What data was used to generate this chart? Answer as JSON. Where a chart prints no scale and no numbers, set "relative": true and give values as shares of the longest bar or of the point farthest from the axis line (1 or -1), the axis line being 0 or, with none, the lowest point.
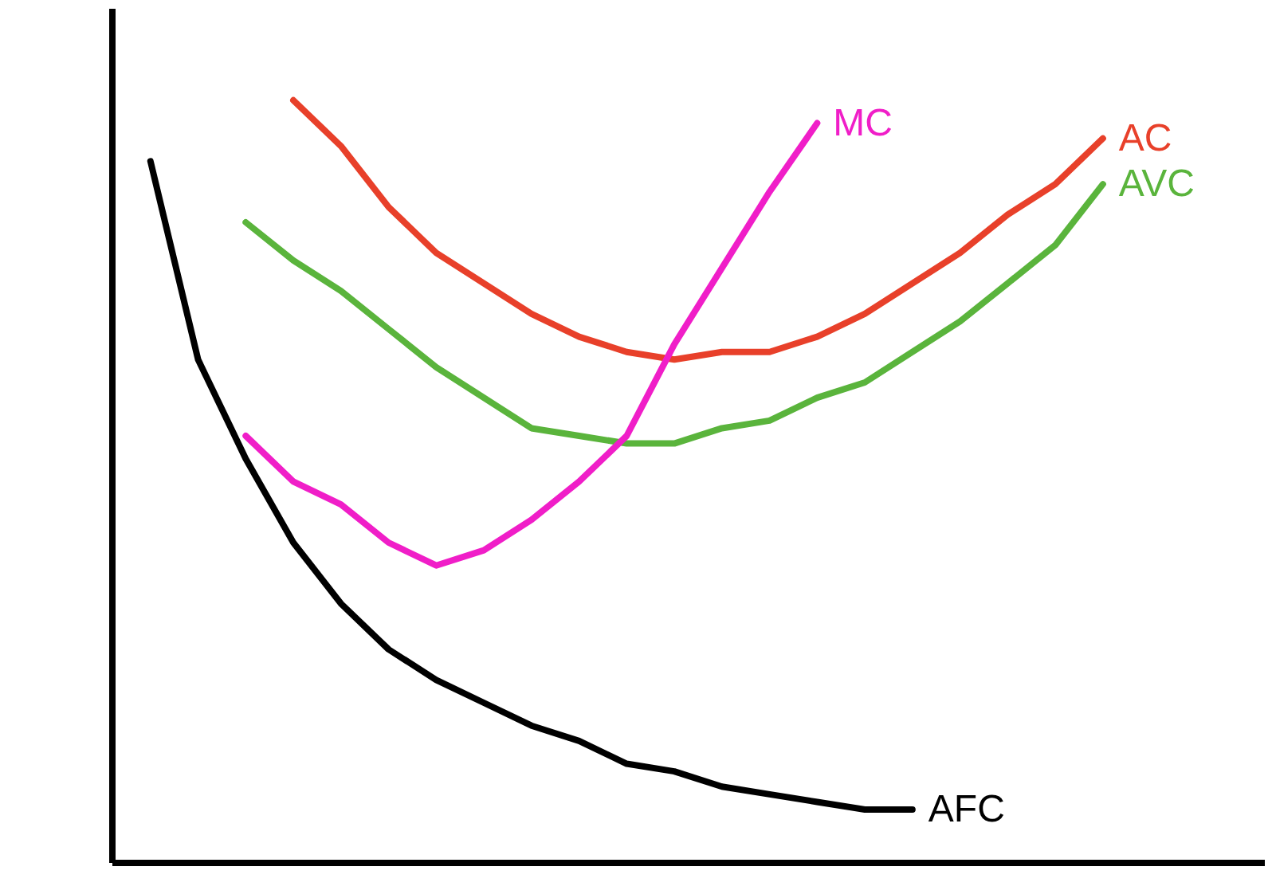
{
  "chart_data": {
    "type": "line",
    "relative": true,
    "categories": [
      null,
      null,
      null,
      null,
      null,
      null,
      null,
      null,
      null,
      null,
      null,
      null,
      null,
      null,
      null,
      null,
      null,
      null,
      null,
      null,
      null,
      null
    ],
    "series": [
      {
        "name": "AC",
        "color": "#e8402a",
        "values": [
          null,
          null,
          null,
          1.0,
          0.94,
          0.86,
          0.8,
          0.76,
          0.72,
          0.69,
          0.67,
          0.66,
          0.67,
          0.67,
          0.69,
          0.72,
          0.76,
          0.8,
          0.85,
          0.89,
          0.95,
          null
        ]
      },
      {
        "name": "AVC",
        "color": "#5ab43c",
        "values": [
          null,
          null,
          0.84,
          0.79,
          0.75,
          0.7,
          0.65,
          0.61,
          0.57,
          0.56,
          0.55,
          0.55,
          0.57,
          0.58,
          0.61,
          0.63,
          0.67,
          0.71,
          0.76,
          0.81,
          0.89,
          null
        ]
      },
      {
        "name": "MC",
        "color": "#f01ec8",
        "values": [
          null,
          null,
          0.56,
          0.5,
          0.47,
          0.42,
          0.39,
          0.41,
          0.45,
          0.5,
          0.56,
          0.68,
          0.78,
          0.88,
          0.97,
          null,
          null,
          null,
          null,
          null,
          null,
          null
        ]
      },
      {
        "name": "AFC",
        "color": "#000000",
        "values": [
          0.92,
          0.66,
          0.53,
          0.42,
          0.34,
          0.28,
          0.24,
          0.21,
          0.18,
          0.16,
          0.13,
          0.12,
          0.1,
          0.09,
          0.08,
          0.07,
          0.07,
          null,
          null,
          null,
          null,
          null
        ]
      }
    ],
    "marker": "none",
    "line_style": "solid",
    "grid": false
  }
}
